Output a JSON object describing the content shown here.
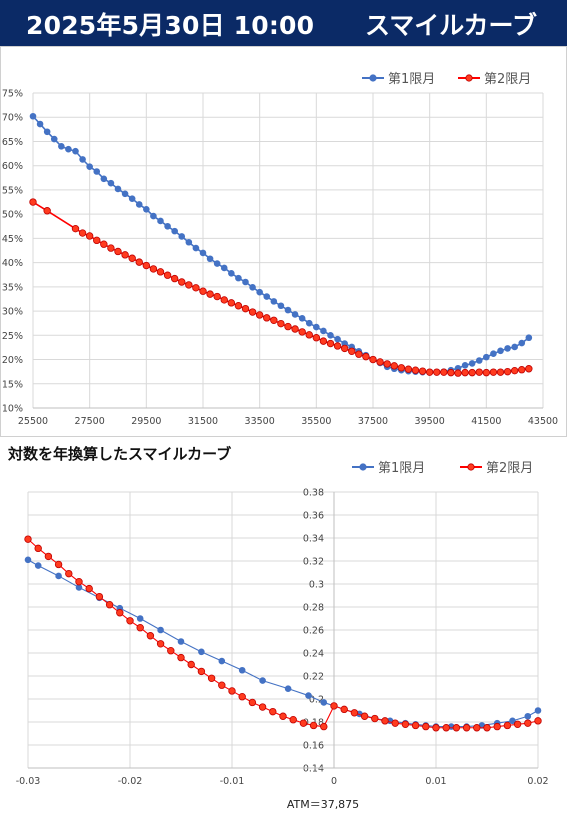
{
  "header": {
    "date": "2025年5月30日 10:00",
    "title": "スマイルカーブ"
  },
  "colors": {
    "series1": "#4472c4",
    "series2": "#ff0000",
    "series2_fill": "#ff3b1f",
    "header_bg": "#0b2a66",
    "grid": "#d9d9d9"
  },
  "chart_data": [
    {
      "type": "line",
      "title": "",
      "xlabel": "",
      "ylabel": "",
      "xlim": [
        25500,
        43500
      ],
      "ylim": [
        10,
        75
      ],
      "xticks": [
        "25500",
        "27500",
        "29500",
        "31500",
        "33500",
        "35500",
        "37500",
        "39500",
        "41500",
        "43500"
      ],
      "yticks": [
        "10%",
        "15%",
        "20%",
        "25%",
        "30%",
        "35%",
        "40%",
        "45%",
        "50%",
        "55%",
        "60%",
        "65%",
        "70%",
        "75%"
      ],
      "legend": "top-right",
      "grid": true,
      "series": [
        {
          "name": "第1限月",
          "color": "#4472c4",
          "x": [
            25500,
            25750,
            26000,
            26250,
            26500,
            26750,
            27000,
            27250,
            27500,
            27750,
            28000,
            28250,
            28500,
            28750,
            29000,
            29250,
            29500,
            29750,
            30000,
            30250,
            30500,
            30750,
            31000,
            31250,
            31500,
            31750,
            32000,
            32250,
            32500,
            32750,
            33000,
            33250,
            33500,
            33750,
            34000,
            34250,
            34500,
            34750,
            35000,
            35250,
            35500,
            35750,
            36000,
            36250,
            36500,
            36750,
            37000,
            37250,
            37500,
            37750,
            38000,
            38250,
            38500,
            38750,
            39000,
            39250,
            39500,
            39750,
            40000,
            40250,
            40500,
            40750,
            41000,
            41250,
            41500,
            41750,
            42000,
            42250,
            42500,
            42750,
            43000
          ],
          "y": [
            70.2,
            68.6,
            67.0,
            65.5,
            64.0,
            63.4,
            63.0,
            61.3,
            59.8,
            58.8,
            57.3,
            56.4,
            55.2,
            54.2,
            53.2,
            52.0,
            51.0,
            49.6,
            48.6,
            47.5,
            46.5,
            45.4,
            44.2,
            43.0,
            42.0,
            40.8,
            39.8,
            38.9,
            37.8,
            36.8,
            36.0,
            34.9,
            33.9,
            33.0,
            32.0,
            31.1,
            30.2,
            29.3,
            28.5,
            27.5,
            26.7,
            25.9,
            25.0,
            24.2,
            23.3,
            22.6,
            21.7,
            20.9,
            20.0,
            19.3,
            18.5,
            18.1,
            17.8,
            17.6,
            17.5,
            17.4,
            17.4,
            17.4,
            17.5,
            17.8,
            18.2,
            18.8,
            19.2,
            19.8,
            20.5,
            21.2,
            21.8,
            22.3,
            22.6,
            23.4,
            24.5
          ]
        },
        {
          "name": "第2限月",
          "color": "#ff0000",
          "x": [
            25500,
            26000,
            27000,
            27250,
            27500,
            27750,
            28000,
            28250,
            28500,
            28750,
            29000,
            29250,
            29500,
            29750,
            30000,
            30250,
            30500,
            30750,
            31000,
            31250,
            31500,
            31750,
            32000,
            32250,
            32500,
            32750,
            33000,
            33250,
            33500,
            33750,
            34000,
            34250,
            34500,
            34750,
            35000,
            35250,
            35500,
            35750,
            36000,
            36250,
            36500,
            36750,
            37000,
            37250,
            37500,
            37750,
            38000,
            38250,
            38500,
            38750,
            39000,
            39250,
            39500,
            39750,
            40000,
            40250,
            40500,
            40750,
            41000,
            41250,
            41500,
            41750,
            42000,
            42250,
            42500,
            42750,
            43000
          ],
          "y": [
            52.5,
            50.7,
            47.0,
            46.1,
            45.5,
            44.6,
            43.8,
            43.0,
            42.3,
            41.6,
            40.9,
            40.1,
            39.4,
            38.7,
            38.1,
            37.4,
            36.7,
            36.0,
            35.4,
            34.8,
            34.1,
            33.5,
            33.0,
            32.3,
            31.7,
            31.1,
            30.5,
            29.8,
            29.2,
            28.6,
            28.1,
            27.4,
            26.8,
            26.3,
            25.7,
            25.1,
            24.5,
            23.8,
            23.3,
            22.8,
            22.3,
            21.7,
            21.1,
            20.6,
            20.0,
            19.5,
            19.1,
            18.7,
            18.3,
            18.0,
            17.8,
            17.6,
            17.4,
            17.4,
            17.4,
            17.3,
            17.2,
            17.3,
            17.3,
            17.4,
            17.3,
            17.4,
            17.4,
            17.5,
            17.7,
            17.9,
            18.1
          ]
        }
      ]
    },
    {
      "type": "line",
      "title": "対数を年換算したスマイルカーブ",
      "xlabel": "ATM＝37,875",
      "ylabel": "",
      "xlim": [
        -0.03,
        0.02
      ],
      "ylim": [
        0.14,
        0.38
      ],
      "xticks": [
        "-0.03",
        "-0.02",
        "-0.01",
        "0",
        "0.01",
        "0.02"
      ],
      "yticks": [
        "0.14",
        "0.16",
        "0.18",
        "0.2",
        "0.22",
        "0.24",
        "0.26",
        "0.28",
        "0.3",
        "0.32",
        "0.34",
        "0.36",
        "0.38"
      ],
      "legend": "top-right",
      "grid": true,
      "series": [
        {
          "name": "第1限月",
          "color": "#4472c4",
          "x": [
            -0.03,
            -0.029,
            -0.027,
            -0.025,
            -0.023,
            -0.021,
            -0.019,
            -0.017,
            -0.015,
            -0.013,
            -0.011,
            -0.009,
            -0.007,
            -0.0045,
            -0.0025,
            -0.001,
            0.001,
            0.0025,
            0.004,
            0.0055,
            0.007,
            0.008,
            0.009,
            0.01,
            0.0115,
            0.013,
            0.0145,
            0.016,
            0.0175,
            0.019,
            0.02
          ],
          "y": [
            0.321,
            0.316,
            0.307,
            0.297,
            0.288,
            0.279,
            0.27,
            0.26,
            0.25,
            0.241,
            0.233,
            0.225,
            0.216,
            0.209,
            0.203,
            0.197,
            0.191,
            0.187,
            0.183,
            0.181,
            0.179,
            0.178,
            0.177,
            0.176,
            0.176,
            0.176,
            0.177,
            0.179,
            0.181,
            0.185,
            0.19
          ]
        },
        {
          "name": "第2限月",
          "color": "#ff0000",
          "x": [
            -0.03,
            -0.029,
            -0.028,
            -0.027,
            -0.026,
            -0.025,
            -0.024,
            -0.023,
            -0.022,
            -0.021,
            -0.02,
            -0.019,
            -0.018,
            -0.017,
            -0.016,
            -0.015,
            -0.014,
            -0.013,
            -0.012,
            -0.011,
            -0.01,
            -0.009,
            -0.008,
            -0.007,
            -0.006,
            -0.005,
            -0.004,
            -0.003,
            -0.002,
            -0.001,
            0.0,
            0.001,
            0.002,
            0.003,
            0.004,
            0.005,
            0.006,
            0.007,
            0.008,
            0.009,
            0.01,
            0.011,
            0.012,
            0.013,
            0.014,
            0.015,
            0.016,
            0.017,
            0.018,
            0.019,
            0.02
          ],
          "y": [
            0.339,
            0.331,
            0.324,
            0.317,
            0.309,
            0.302,
            0.296,
            0.289,
            0.282,
            0.275,
            0.268,
            0.262,
            0.255,
            0.248,
            0.242,
            0.236,
            0.23,
            0.224,
            0.218,
            0.212,
            0.207,
            0.202,
            0.197,
            0.193,
            0.189,
            0.185,
            0.182,
            0.179,
            0.177,
            0.176,
            0.194,
            0.191,
            0.188,
            0.185,
            0.183,
            0.181,
            0.179,
            0.178,
            0.177,
            0.176,
            0.175,
            0.175,
            0.175,
            0.175,
            0.175,
            0.175,
            0.176,
            0.177,
            0.178,
            0.179,
            0.181
          ]
        }
      ]
    }
  ]
}
